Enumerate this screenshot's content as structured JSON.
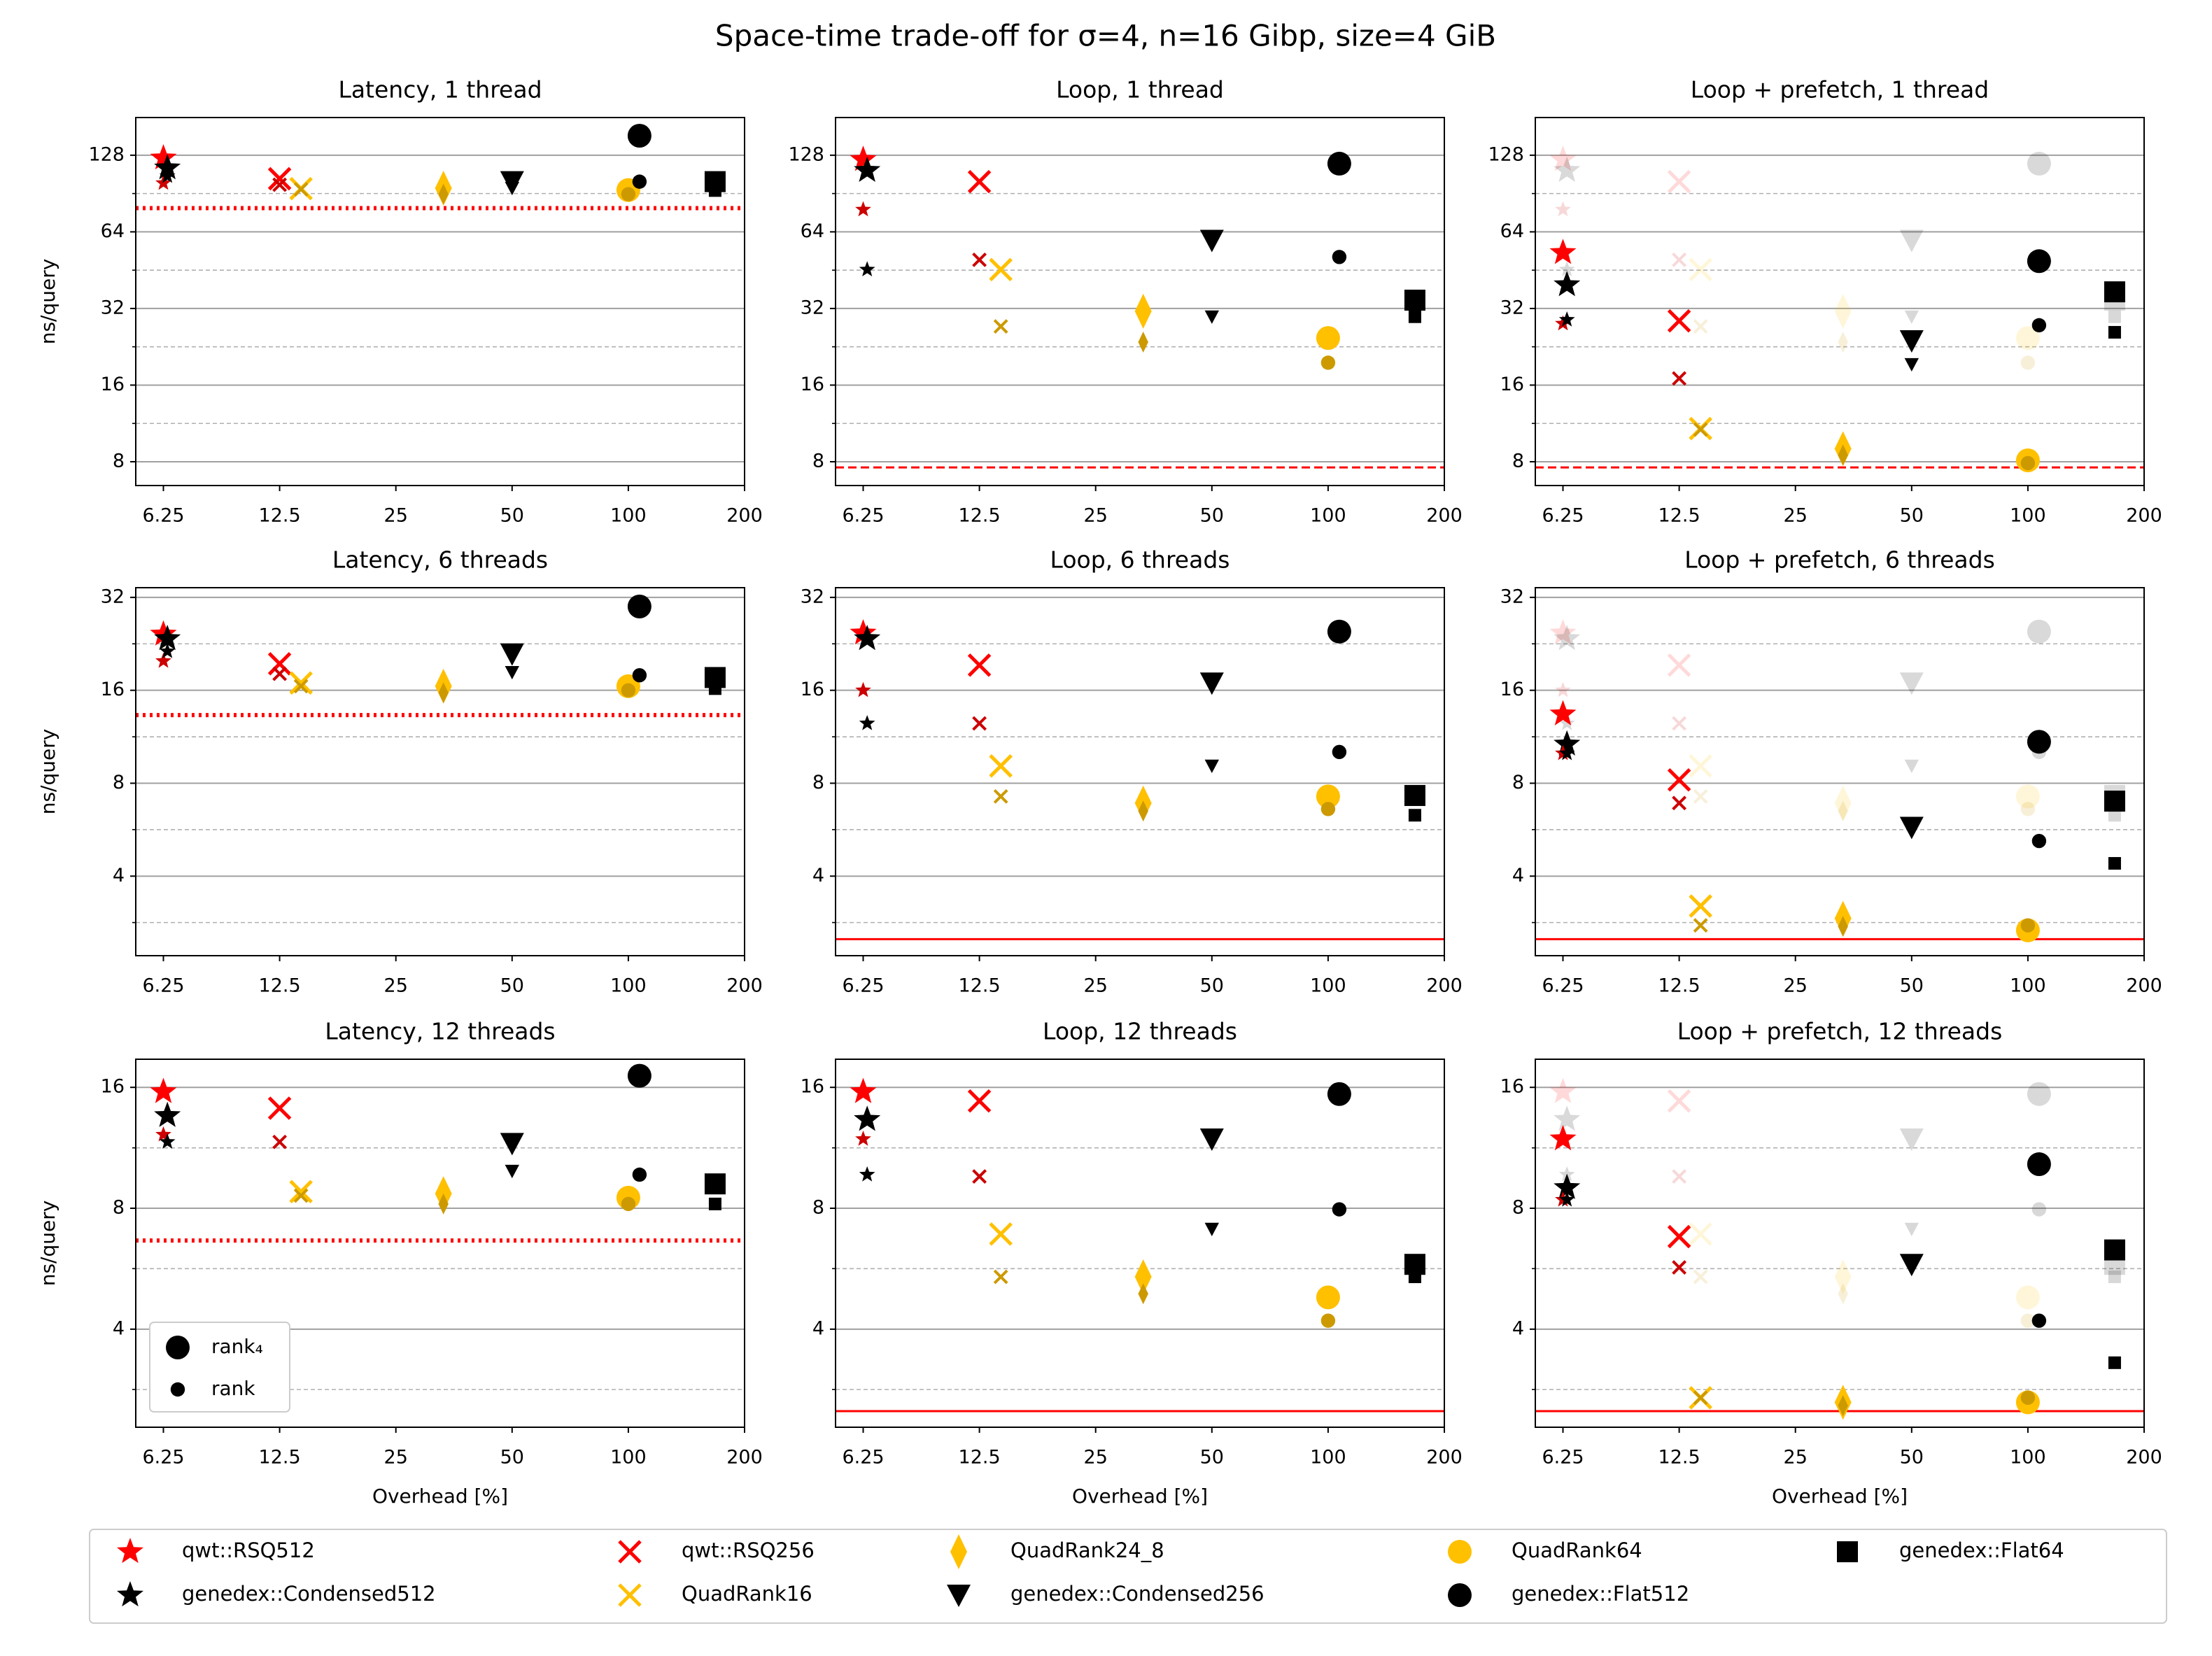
{
  "title": "Space-time trade-off for σ=4, n=16 Gibp, size=4 GiB",
  "methods": [
    {
      "name": "qwt::RSQ512",
      "color": "#ff0000",
      "marker": "star",
      "x": 6.25
    },
    {
      "name": "genedex::Condensed512",
      "color": "#000000",
      "marker": "star",
      "x": 6.4
    },
    {
      "name": "qwt::RSQ256",
      "color": "#ff0000",
      "marker": "x",
      "x": 12.5
    },
    {
      "name": "QuadRank16",
      "color": "#ffc000",
      "marker": "x",
      "x": 14.2
    },
    {
      "name": "QuadRank24_8",
      "color": "#ffc000",
      "marker": "thin_diamond",
      "x": 33.2
    },
    {
      "name": "genedex::Condensed256",
      "color": "#000000",
      "marker": "triangle_down",
      "x": 50
    },
    {
      "name": "QuadRank64",
      "color": "#ffc000",
      "marker": "circle",
      "x": 100
    },
    {
      "name": "genedex::Flat512",
      "color": "#000000",
      "marker": "circle",
      "x": 106.9
    },
    {
      "name": "genedex::Flat64",
      "color": "#000000",
      "marker": "square",
      "x": 167.8
    }
  ],
  "chart_data": [
    {
      "type": "scatter",
      "title": "Latency, 1 thread",
      "ylabel": "ns/query",
      "log": true,
      "xlim": [
        5.3,
        200
      ],
      "xticks": [
        6.25,
        12.5,
        25,
        50,
        100,
        200
      ],
      "ylim": [
        6.45,
        180
      ],
      "yticks": [
        8,
        16,
        32,
        64,
        128
      ],
      "minor_yticks": [
        11.31,
        22.63,
        45.25,
        90.51
      ],
      "rank4": [
        124.7,
        114,
        103.5,
        94.6,
        95,
        100.8,
        93.4,
        152.7,
        100.8
      ],
      "rank": [
        99.5,
        106,
        98,
        94,
        90,
        95,
        90,
        100.8,
        93
      ],
      "baseline": {
        "value": 79.3,
        "style": "dotted",
        "color": "#ff0000"
      }
    },
    {
      "type": "scatter",
      "title": "Loop, 1 thread",
      "log": true,
      "xlim": [
        5.3,
        200
      ],
      "xticks": [
        6.25,
        12.5,
        25,
        50,
        100,
        200
      ],
      "ylim": [
        6.45,
        180
      ],
      "yticks": [
        8,
        16,
        32,
        64,
        128
      ],
      "minor_yticks": [
        11.31,
        22.63,
        45.25,
        90.51
      ],
      "rank4": [
        123,
        111.4,
        100.8,
        45.5,
        31.2,
        59.3,
        24.5,
        118.6,
        34.5
      ],
      "rank": [
        78.3,
        45.5,
        49.7,
        27.2,
        23.6,
        29.7,
        19.6,
        51,
        29.7
      ],
      "baseline": {
        "value": 7.6,
        "style": "dashed",
        "color": "#ff0000"
      }
    },
    {
      "type": "scatter",
      "title": "Loop + prefetch, 1 thread",
      "log": true,
      "xlim": [
        5.3,
        200
      ],
      "xticks": [
        6.25,
        12.5,
        25,
        50,
        100,
        200
      ],
      "ylim": [
        6.45,
        180
      ],
      "yticks": [
        8,
        16,
        32,
        64,
        128
      ],
      "minor_yticks": [
        11.31,
        22.63,
        45.25,
        90.51
      ],
      "rank4": [
        53,
        39.6,
        28.6,
        10.8,
        9.0,
        23.9,
        8.1,
        49.1,
        37.2
      ],
      "rank": [
        27.9,
        28.9,
        17.0,
        10.7,
        8.5,
        19.3,
        7.9,
        27.5,
        25.8
      ],
      "ghost_panel": 1,
      "baseline": {
        "value": 7.6,
        "style": "dashed",
        "color": "#ff0000"
      }
    },
    {
      "type": "scatter",
      "title": "Latency, 6 threads",
      "ylabel": "ns/query",
      "log": true,
      "xlim": [
        5.3,
        200
      ],
      "xticks": [
        6.25,
        12.5,
        25,
        50,
        100,
        200
      ],
      "ylim": [
        2.21,
        34.4
      ],
      "yticks": [
        4,
        8,
        16,
        32
      ],
      "minor_yticks": [
        2.83,
        5.66,
        11.31,
        22.63
      ],
      "rank4": [
        24.3,
        23.5,
        19.5,
        16.9,
        16.5,
        21.0,
        16.5,
        29.9,
        17.6
      ],
      "rank": [
        19.9,
        21.4,
        18.1,
        16.5,
        15.7,
        18.3,
        16.0,
        17.9,
        16.2
      ],
      "baseline": {
        "value": 13.3,
        "style": "dotted",
        "color": "#ff0000"
      }
    },
    {
      "type": "scatter",
      "title": "Loop, 6 threads",
      "log": true,
      "xlim": [
        5.3,
        200
      ],
      "xticks": [
        6.25,
        12.5,
        25,
        50,
        100,
        200
      ],
      "ylim": [
        2.21,
        34.4
      ],
      "yticks": [
        4,
        8,
        16,
        32
      ],
      "minor_yticks": [
        2.83,
        5.66,
        11.31,
        22.63
      ],
      "rank4": [
        24.5,
        23.5,
        19.3,
        9.1,
        6.9,
        16.9,
        7.25,
        24.8,
        7.3
      ],
      "rank": [
        16.0,
        12.5,
        12.5,
        7.25,
        6.5,
        9.1,
        6.6,
        10.1,
        6.3
      ],
      "baseline": {
        "value": 2.5,
        "style": "solid",
        "color": "#ff0000"
      }
    },
    {
      "type": "scatter",
      "title": "Loop + prefetch, 6 threads",
      "log": true,
      "xlim": [
        5.3,
        200
      ],
      "xticks": [
        6.25,
        12.5,
        25,
        50,
        100,
        200
      ],
      "ylim": [
        2.21,
        34.4
      ],
      "yticks": [
        4,
        8,
        16,
        32
      ],
      "minor_yticks": [
        2.83,
        5.66,
        11.31,
        22.63
      ],
      "rank4": [
        13.4,
        10.7,
        8.2,
        3.2,
        2.92,
        5.76,
        2.67,
        10.9,
        7.0
      ],
      "rank": [
        10.0,
        10.0,
        6.9,
        2.77,
        2.75,
        5.7,
        2.77,
        5.2,
        4.4
      ],
      "ghost_panel": 4,
      "baseline": {
        "value": 2.5,
        "style": "solid",
        "color": "#ff0000"
      }
    },
    {
      "type": "scatter",
      "title": "Latency, 12 threads",
      "ylabel": "ns/query",
      "xlabel": "Overhead [%]",
      "log": true,
      "xlim": [
        5.3,
        200
      ],
      "xticks": [
        6.25,
        12.5,
        25,
        50,
        100,
        200
      ],
      "ylim": [
        2.28,
        18.8
      ],
      "yticks": [
        4,
        8,
        16
      ],
      "minor_yticks": [
        2.83,
        5.66,
        11.31
      ],
      "rank4": [
        15.6,
        13.6,
        14.2,
        8.8,
        8.7,
        11.6,
        8.5,
        17.1,
        9.2
      ],
      "rank": [
        12.2,
        11.7,
        11.7,
        8.6,
        8.2,
        9.9,
        8.2,
        9.7,
        8.2
      ],
      "baseline": {
        "value": 6.65,
        "style": "dotted",
        "color": "#ff0000"
      },
      "legend": "lower left",
      "legend_labels": [
        "rank₄",
        "rank"
      ]
    },
    {
      "type": "scatter",
      "title": "Loop, 12 threads",
      "xlabel": "Overhead [%]",
      "log": true,
      "xlim": [
        5.3,
        200
      ],
      "xticks": [
        6.25,
        12.5,
        25,
        50,
        100,
        200
      ],
      "ylim": [
        2.28,
        18.8
      ],
      "yticks": [
        4,
        8,
        16
      ],
      "minor_yticks": [
        2.83,
        5.66,
        11.31
      ],
      "rank4": [
        15.6,
        13.3,
        14.8,
        6.9,
        5.4,
        11.9,
        4.8,
        15.4,
        5.8
      ],
      "rank": [
        11.9,
        9.7,
        9.6,
        5.4,
        4.9,
        7.1,
        4.2,
        7.95,
        5.4
      ],
      "baseline": {
        "value": 2.5,
        "style": "solid",
        "color": "#ff0000"
      }
    },
    {
      "type": "scatter",
      "title": "Loop + prefetch, 12 threads",
      "xlabel": "Overhead [%]",
      "log": true,
      "xlim": [
        5.3,
        200
      ],
      "xticks": [
        6.25,
        12.5,
        25,
        50,
        100,
        200
      ],
      "ylim": [
        2.28,
        18.8
      ],
      "yticks": [
        4,
        8,
        16
      ],
      "minor_yticks": [
        2.83,
        5.66,
        11.31
      ],
      "rank4": [
        11.9,
        9.0,
        6.8,
        2.7,
        2.63,
        5.8,
        2.63,
        10.3,
        6.3
      ],
      "rank": [
        8.4,
        8.4,
        5.7,
        2.7,
        2.58,
        5.8,
        2.7,
        4.2,
        3.3
      ],
      "ghost_panel": 7,
      "baseline": {
        "value": 2.5,
        "style": "solid",
        "color": "#ff0000"
      }
    }
  ]
}
